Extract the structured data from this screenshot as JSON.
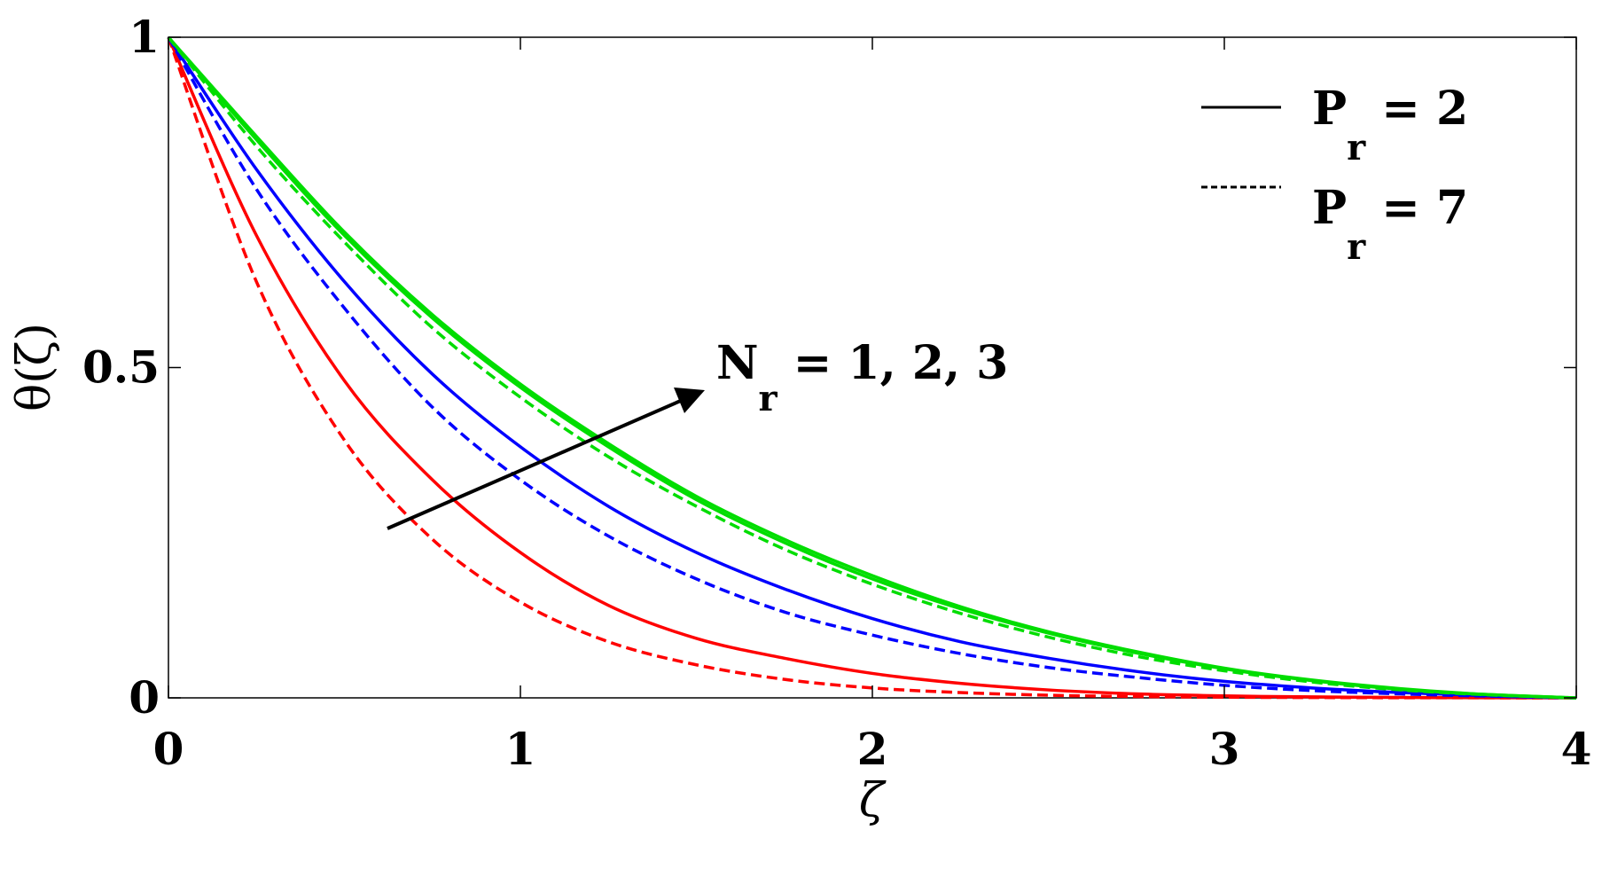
{
  "chart_data": {
    "type": "line",
    "xlabel": "ζ",
    "ylabel": "θ(ζ)",
    "xlim": [
      0,
      4
    ],
    "ylim": [
      0,
      1
    ],
    "x_ticks": [
      "0",
      "1",
      "2",
      "3",
      "4"
    ],
    "y_ticks": [
      "0",
      "0.5",
      "1"
    ],
    "grid": false,
    "legend_position": "top-right",
    "legend": [
      {
        "style": "solid",
        "main": "P",
        "sub": "r",
        "rest": " = 2"
      },
      {
        "style": "dashed",
        "main": "P",
        "sub": "r",
        "rest": " = 7"
      }
    ],
    "annotation": {
      "main": "N",
      "sub": "r",
      "rest": " = 1, 2, 3",
      "arrow": "increasing"
    },
    "colors": {
      "red": "#ff0000",
      "blue": "#0000ff",
      "green": "#00dd00"
    },
    "x": [
      0,
      0.25,
      0.5,
      0.75,
      1,
      1.25,
      1.5,
      1.75,
      2,
      2.25,
      2.5,
      2.75,
      3,
      3.25,
      3.5,
      3.75,
      4
    ],
    "series": [
      {
        "color": "#ff0000",
        "style": "solid",
        "values": [
          1,
          0.7,
          0.48,
          0.33,
          0.22,
          0.14,
          0.09,
          0.06,
          0.037,
          0.022,
          0.012,
          0.006,
          0.003,
          0.0015,
          0.0007,
          0.0002,
          0
        ]
      },
      {
        "color": "#ff0000",
        "style": "dashed",
        "values": [
          1,
          0.63,
          0.39,
          0.24,
          0.145,
          0.085,
          0.05,
          0.028,
          0.015,
          0.008,
          0.004,
          0.002,
          0.001,
          0.0005,
          0.0002,
          0.0001,
          0
        ]
      },
      {
        "color": "#0000ff",
        "style": "solid",
        "values": [
          1,
          0.8,
          0.63,
          0.49,
          0.38,
          0.29,
          0.22,
          0.165,
          0.12,
          0.085,
          0.06,
          0.04,
          0.025,
          0.015,
          0.008,
          0.003,
          0
        ]
      },
      {
        "color": "#0000ff",
        "style": "dashed",
        "values": [
          1,
          0.77,
          0.59,
          0.44,
          0.33,
          0.245,
          0.18,
          0.13,
          0.095,
          0.067,
          0.046,
          0.031,
          0.019,
          0.011,
          0.006,
          0.0025,
          0
        ]
      },
      {
        "color": "#00dd00",
        "style": "solid",
        "values": [
          1,
          0.845,
          0.7,
          0.575,
          0.47,
          0.38,
          0.3,
          0.235,
          0.18,
          0.135,
          0.098,
          0.068,
          0.044,
          0.026,
          0.013,
          0.005,
          0
        ]
      },
      {
        "color": "#00dd00",
        "style": "dashed",
        "values": [
          1,
          0.835,
          0.69,
          0.56,
          0.455,
          0.365,
          0.29,
          0.225,
          0.172,
          0.128,
          0.092,
          0.063,
          0.041,
          0.024,
          0.012,
          0.0045,
          0
        ]
      },
      {
        "color": "#00dd00",
        "style": "solid",
        "values": [
          1,
          0.85,
          0.705,
          0.58,
          0.475,
          0.385,
          0.305,
          0.24,
          0.185,
          0.138,
          0.1,
          0.07,
          0.045,
          0.027,
          0.014,
          0.005,
          0
        ]
      }
    ]
  }
}
